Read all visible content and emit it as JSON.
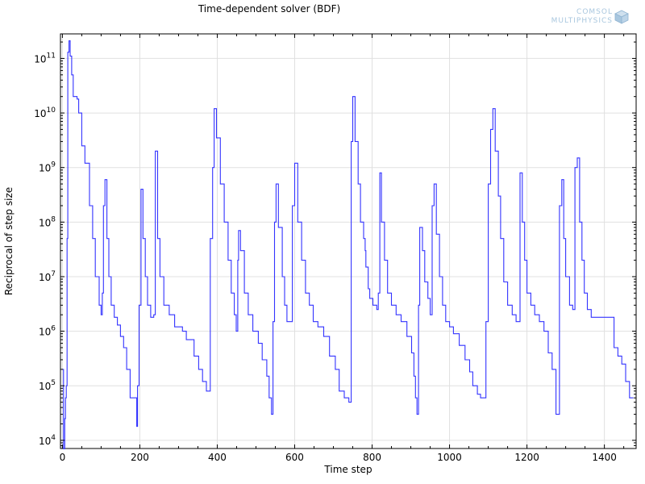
{
  "title": "Time-dependent solver (BDF)",
  "logo": {
    "line1": "COMSOL",
    "line2": "MULTIPHYSICS",
    "color": "#a9c7df"
  },
  "chart_data": {
    "type": "line",
    "xlabel": "Time step",
    "ylabel": "Reciprocal of step size",
    "xlim": [
      -5,
      1482
    ],
    "ylim_log10": [
      3.85,
      11.45
    ],
    "y_scale": "log",
    "grid": true,
    "x_ticks": [
      0,
      200,
      400,
      600,
      800,
      1000,
      1200,
      1400
    ],
    "y_ticks": [
      {
        "base": "10",
        "exp": "4",
        "value": 10000
      },
      {
        "base": "10",
        "exp": "5",
        "value": 100000
      },
      {
        "base": "10",
        "exp": "6",
        "value": 1000000
      },
      {
        "base": "10",
        "exp": "7",
        "value": 10000000
      },
      {
        "base": "10",
        "exp": "8",
        "value": 100000000
      },
      {
        "base": "10",
        "exp": "9",
        "value": 1000000000
      },
      {
        "base": "10",
        "exp": "10",
        "value": 10000000000
      },
      {
        "base": "10",
        "exp": "11",
        "value": 100000000000
      }
    ],
    "series": [
      {
        "color": "#3333ff",
        "points": [
          [
            0,
            200000
          ],
          [
            3,
            7000
          ],
          [
            6,
            25000
          ],
          [
            8,
            60000
          ],
          [
            10,
            100000
          ],
          [
            12,
            50000000
          ],
          [
            14,
            130000000000
          ],
          [
            17,
            210000000000
          ],
          [
            20,
            110000000000
          ],
          [
            24,
            50000000000
          ],
          [
            28,
            20000000000
          ],
          [
            38,
            18000000000
          ],
          [
            42,
            10000000000
          ],
          [
            50,
            2500000000
          ],
          [
            58,
            1200000000
          ],
          [
            70,
            200000000
          ],
          [
            78,
            50000000
          ],
          [
            85,
            10000000
          ],
          [
            95,
            3000000
          ],
          [
            100,
            2000000
          ],
          [
            103,
            5000000
          ],
          [
            106,
            200000000
          ],
          [
            110,
            600000000
          ],
          [
            115,
            50000000
          ],
          [
            120,
            10000000
          ],
          [
            126,
            3000000
          ],
          [
            134,
            1800000
          ],
          [
            142,
            1300000
          ],
          [
            150,
            800000
          ],
          [
            158,
            500000
          ],
          [
            166,
            200000
          ],
          [
            175,
            60000
          ],
          [
            192,
            18000
          ],
          [
            194,
            100000
          ],
          [
            198,
            3000000
          ],
          [
            203,
            400000000
          ],
          [
            208,
            50000000
          ],
          [
            214,
            10000000
          ],
          [
            220,
            3000000
          ],
          [
            228,
            1800000
          ],
          [
            236,
            2000000
          ],
          [
            240,
            2000000000
          ],
          [
            246,
            50000000
          ],
          [
            252,
            10000000
          ],
          [
            262,
            3000000
          ],
          [
            276,
            2000000
          ],
          [
            290,
            1200000
          ],
          [
            310,
            1000000
          ],
          [
            320,
            700000
          ],
          [
            340,
            350000
          ],
          [
            352,
            200000
          ],
          [
            362,
            120000
          ],
          [
            372,
            80000
          ],
          [
            378,
            80000
          ],
          [
            382,
            50000000
          ],
          [
            388,
            1000000000
          ],
          [
            392,
            12000000000
          ],
          [
            398,
            3500000000
          ],
          [
            408,
            500000000
          ],
          [
            418,
            100000000
          ],
          [
            428,
            20000000
          ],
          [
            436,
            5000000
          ],
          [
            444,
            2000000
          ],
          [
            449,
            1000000
          ],
          [
            453,
            20000000
          ],
          [
            455,
            70000000
          ],
          [
            460,
            30000000
          ],
          [
            470,
            5000000
          ],
          [
            480,
            2000000
          ],
          [
            492,
            1000000
          ],
          [
            506,
            600000
          ],
          [
            516,
            300000
          ],
          [
            528,
            150000
          ],
          [
            534,
            60000
          ],
          [
            540,
            30000
          ],
          [
            544,
            1500000
          ],
          [
            548,
            100000000
          ],
          [
            552,
            500000000
          ],
          [
            558,
            80000000
          ],
          [
            568,
            10000000
          ],
          [
            574,
            3000000
          ],
          [
            580,
            1500000
          ],
          [
            588,
            1500000
          ],
          [
            594,
            200000000
          ],
          [
            600,
            1200000000
          ],
          [
            608,
            100000000
          ],
          [
            618,
            20000000
          ],
          [
            628,
            5000000
          ],
          [
            638,
            3000000
          ],
          [
            648,
            1500000
          ],
          [
            660,
            1200000
          ],
          [
            675,
            800000
          ],
          [
            690,
            350000
          ],
          [
            705,
            200000
          ],
          [
            715,
            80000
          ],
          [
            728,
            60000
          ],
          [
            740,
            50000
          ],
          [
            746,
            3000000000
          ],
          [
            750,
            20000000000
          ],
          [
            756,
            3000000000
          ],
          [
            764,
            500000000
          ],
          [
            770,
            100000000
          ],
          [
            778,
            50000000
          ],
          [
            782,
            30000000
          ],
          [
            784,
            15000000
          ],
          [
            790,
            6000000
          ],
          [
            794,
            4000000
          ],
          [
            802,
            3000000
          ],
          [
            812,
            2500000
          ],
          [
            816,
            5000000
          ],
          [
            820,
            800000000
          ],
          [
            824,
            100000000
          ],
          [
            832,
            20000000
          ],
          [
            840,
            5000000
          ],
          [
            850,
            3000000
          ],
          [
            862,
            2000000
          ],
          [
            875,
            1500000
          ],
          [
            890,
            800000
          ],
          [
            902,
            400000
          ],
          [
            908,
            150000
          ],
          [
            912,
            60000
          ],
          [
            916,
            30000
          ],
          [
            920,
            3000000
          ],
          [
            923,
            80000000
          ],
          [
            930,
            30000000
          ],
          [
            936,
            8000000
          ],
          [
            944,
            4000000
          ],
          [
            950,
            2000000
          ],
          [
            955,
            200000000
          ],
          [
            960,
            500000000
          ],
          [
            966,
            60000000
          ],
          [
            974,
            10000000
          ],
          [
            982,
            3000000
          ],
          [
            990,
            1500000
          ],
          [
            1000,
            1200000
          ],
          [
            1010,
            900000
          ],
          [
            1025,
            550000
          ],
          [
            1040,
            300000
          ],
          [
            1052,
            180000
          ],
          [
            1060,
            100000
          ],
          [
            1072,
            70000
          ],
          [
            1080,
            60000
          ],
          [
            1088,
            60000
          ],
          [
            1094,
            1500000
          ],
          [
            1100,
            500000000
          ],
          [
            1106,
            5000000000
          ],
          [
            1112,
            12000000000
          ],
          [
            1118,
            2000000000
          ],
          [
            1126,
            300000000
          ],
          [
            1132,
            50000000
          ],
          [
            1140,
            8000000
          ],
          [
            1150,
            3000000
          ],
          [
            1162,
            2000000
          ],
          [
            1172,
            1500000
          ],
          [
            1182,
            800000000
          ],
          [
            1188,
            100000000
          ],
          [
            1194,
            20000000
          ],
          [
            1200,
            5000000
          ],
          [
            1210,
            3000000
          ],
          [
            1220,
            2000000
          ],
          [
            1232,
            1500000
          ],
          [
            1244,
            1000000
          ],
          [
            1255,
            400000
          ],
          [
            1265,
            200000
          ],
          [
            1275,
            30000
          ],
          [
            1280,
            30000
          ],
          [
            1284,
            200000000
          ],
          [
            1290,
            600000000
          ],
          [
            1295,
            50000000
          ],
          [
            1300,
            10000000
          ],
          [
            1310,
            3000000
          ],
          [
            1318,
            2500000
          ],
          [
            1324,
            1000000000
          ],
          [
            1330,
            1500000000
          ],
          [
            1336,
            100000000
          ],
          [
            1342,
            20000000
          ],
          [
            1348,
            5000000
          ],
          [
            1356,
            2500000
          ],
          [
            1366,
            1800000
          ],
          [
            1420,
            1800000
          ],
          [
            1425,
            500000
          ],
          [
            1435,
            350000
          ],
          [
            1445,
            250000
          ],
          [
            1455,
            120000
          ],
          [
            1465,
            60000
          ],
          [
            1475,
            60000
          ]
        ]
      }
    ]
  }
}
